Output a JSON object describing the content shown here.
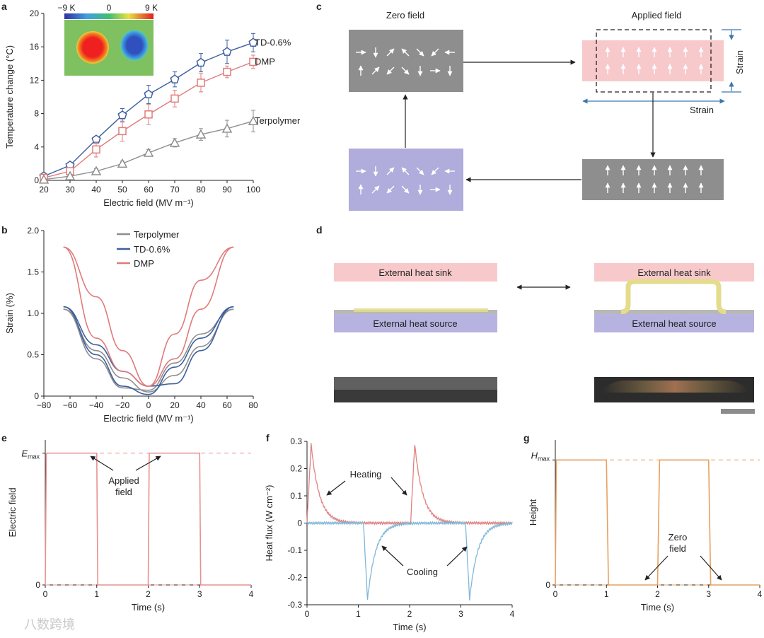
{
  "panels": {
    "a": "a",
    "b": "b",
    "c": "c",
    "d": "d",
    "e": "e",
    "f": "f",
    "g": "g"
  },
  "watermark": "八数跨境",
  "chart_data": [
    {
      "panel": "a",
      "type": "line",
      "xlabel": "Electric field (MV m⁻¹)",
      "ylabel": "Temperature change (°C)",
      "xlim": [
        20,
        100
      ],
      "ylim": [
        0,
        20
      ],
      "xticks": [
        "20",
        "30",
        "40",
        "50",
        "60",
        "70",
        "80",
        "90",
        "100"
      ],
      "yticks": [
        "0",
        "4",
        "8",
        "12",
        "16",
        "20"
      ],
      "x": [
        20,
        30,
        40,
        50,
        60,
        70,
        80,
        90,
        100
      ],
      "series": [
        {
          "name": "TD-0.6%",
          "color": "#3d5fa0",
          "marker": "pentagon",
          "values": [
            0.5,
            1.8,
            4.9,
            7.8,
            10.3,
            12.1,
            14.1,
            15.4,
            16.5
          ],
          "errors": [
            0.2,
            0.3,
            0.3,
            0.8,
            1.1,
            0.9,
            1.1,
            1.4,
            1.1
          ]
        },
        {
          "name": "DMP",
          "color": "#e07b7b",
          "marker": "square",
          "values": [
            0.3,
            1.1,
            3.7,
            5.9,
            7.9,
            9.8,
            11.7,
            13.0,
            14.2
          ],
          "errors": [
            0.2,
            0.3,
            0.9,
            1.2,
            1.2,
            1.0,
            1.1,
            0.7,
            0.8
          ]
        },
        {
          "name": "Terpolymer",
          "color": "#8e8e8e",
          "marker": "triangle",
          "values": [
            0.1,
            0.5,
            1.1,
            2.0,
            3.3,
            4.5,
            5.5,
            6.2,
            7.1
          ],
          "errors": [
            0.1,
            0.2,
            0.3,
            0.3,
            0.4,
            0.5,
            0.7,
            1.0,
            1.3
          ]
        }
      ],
      "inset": {
        "scale_labels": [
          "−9 K",
          "0",
          "9 K"
        ]
      }
    },
    {
      "panel": "b",
      "type": "line",
      "xlabel": "Electric field (MV m⁻¹)",
      "ylabel": "Strain (%)",
      "xlim": [
        -80,
        80
      ],
      "ylim": [
        0,
        2.0
      ],
      "xticks": [
        "−80",
        "−60",
        "−40",
        "−20",
        "0",
        "20",
        "40",
        "60",
        "80"
      ],
      "yticks": [
        "0",
        "0.5",
        "1.0",
        "1.5",
        "2.0"
      ],
      "legend": [
        "Terpolymer",
        "TD-0.6%",
        "DMP"
      ],
      "series": [
        {
          "name": "Terpolymer",
          "color": "#8e8e8e",
          "peak": 1.05,
          "emax": 65,
          "up": {
            "x": [
              -65,
              -40,
              -20,
              0,
              20,
              40,
              65
            ],
            "y": [
              1.05,
              0.55,
              0.22,
              0.05,
              0.25,
              0.6,
              1.05
            ]
          },
          "down": {
            "x": [
              65,
              40,
              20,
              0,
              -20,
              -40,
              -65
            ],
            "y": [
              1.05,
              0.75,
              0.4,
              0.07,
              0.1,
              0.45,
              1.05
            ]
          }
        },
        {
          "name": "TD-0.6%",
          "color": "#3d5fa0",
          "peak": 1.08,
          "emax": 65,
          "up": {
            "x": [
              -65,
              -40,
              -20,
              0,
              20,
              40,
              65
            ],
            "y": [
              1.08,
              0.62,
              0.3,
              0.12,
              0.15,
              0.55,
              1.08
            ]
          },
          "down": {
            "x": [
              65,
              40,
              20,
              0,
              -20,
              -40,
              -65
            ],
            "y": [
              1.08,
              0.7,
              0.35,
              0.02,
              0.12,
              0.5,
              1.08
            ]
          }
        },
        {
          "name": "DMP",
          "color": "#e07b7b",
          "peak": 1.8,
          "emax": 65,
          "up": {
            "x": [
              -65,
              -40,
              -20,
              0,
              20,
              40,
              65
            ],
            "y": [
              1.8,
              1.2,
              0.55,
              0.12,
              0.45,
              1.05,
              1.8
            ]
          },
          "down": {
            "x": [
              65,
              40,
              20,
              0,
              -20,
              -40,
              -65
            ],
            "y": [
              1.8,
              1.4,
              0.75,
              0.12,
              0.3,
              0.7,
              1.8
            ]
          }
        }
      ]
    },
    {
      "panel": "e",
      "type": "line",
      "xlabel": "Time (s)",
      "ylabel": "Electric field",
      "xlim": [
        0,
        4
      ],
      "xticks": [
        "0",
        "1",
        "2",
        "3",
        "4"
      ],
      "ylevels": {
        "Emax_main": "E",
        "Emax_sub": "max",
        "zero": "0"
      },
      "series": [
        {
          "name": "",
          "color": "#e89090",
          "x": [
            0,
            0.02,
            1.0,
            1.02,
            2.0,
            2.02,
            3.0,
            3.02,
            4.0
          ],
          "y": [
            0,
            1,
            1,
            0,
            0,
            1,
            1,
            0,
            0
          ]
        }
      ],
      "annotations": [
        {
          "line1": "Applied",
          "line2": "field"
        }
      ]
    },
    {
      "panel": "f",
      "type": "line",
      "xlabel": "Time (s)",
      "ylabel": "Heat flux (W cm⁻²)",
      "xlim": [
        0,
        4
      ],
      "ylim": [
        -0.3,
        0.3
      ],
      "xticks": [
        "0",
        "1",
        "2",
        "3",
        "4"
      ],
      "yticks": [
        "0.3",
        "0.2",
        "0.1",
        "0",
        "-0.1",
        "-0.2",
        "-0.3"
      ],
      "series": [
        {
          "name": "",
          "color": "#e08080",
          "peaks": [
            [
              0.08,
              0.29
            ],
            [
              2.1,
              0.29
            ]
          ]
        },
        {
          "name": "",
          "color": "#7fb8d8",
          "peaks": [
            [
              1.18,
              -0.28
            ],
            [
              3.17,
              -0.28
            ]
          ]
        }
      ],
      "annotations": [
        "Heating",
        "Cooling"
      ]
    },
    {
      "panel": "g",
      "type": "line",
      "xlabel": "Time (s)",
      "ylabel": "Height",
      "xlim": [
        0,
        4
      ],
      "xticks": [
        "0",
        "1",
        "2",
        "3",
        "4"
      ],
      "ylevels": {
        "Hmax_main": "H",
        "Hmax_sub": "max",
        "zero": "0"
      },
      "series": [
        {
          "name": "",
          "color": "#e8a060",
          "x": [
            0,
            0.02,
            1.0,
            1.04,
            2.0,
            2.04,
            3.0,
            3.04,
            4.0
          ],
          "y": [
            0,
            1,
            1,
            0,
            0,
            1,
            1,
            0,
            0
          ]
        }
      ],
      "annotations": [
        {
          "line1": "Zero",
          "line2": "field"
        }
      ]
    }
  ],
  "diagram_c": {
    "zero_field": "Zero field",
    "applied_field": "Applied field",
    "strain_h": "Strain",
    "strain_v": "Strain",
    "colors": {
      "gray": "#8e8e8e",
      "pink": "#f7c9cb",
      "lavender": "#b0acdc"
    }
  },
  "diagram_d": {
    "sink": "External heat sink",
    "source": "External heat source",
    "colors": {
      "sink": "#f7c9cb",
      "source": "#b7b3e0",
      "film": "#e4dc8c"
    }
  }
}
